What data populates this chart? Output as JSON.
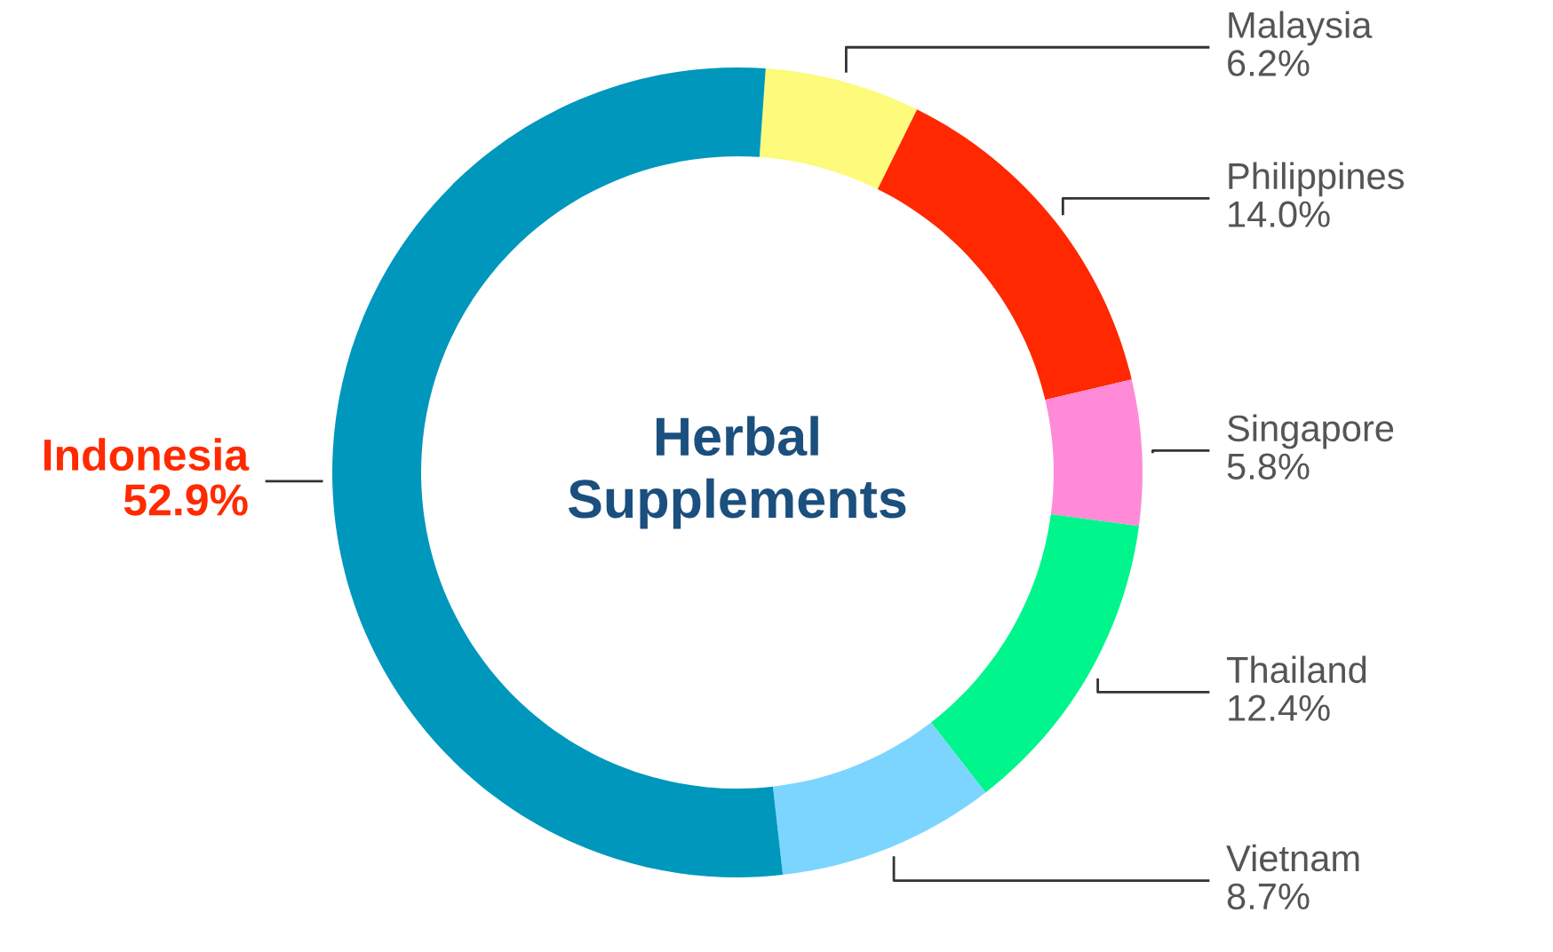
{
  "chart_data": {
    "type": "donut",
    "title": "Herbal\nSupplements",
    "categories": [
      "Malaysia",
      "Philippines",
      "Singapore",
      "Thailand",
      "Vietnam",
      "Indonesia"
    ],
    "values": [
      6.2,
      14.0,
      5.8,
      12.4,
      8.7,
      52.9
    ],
    "value_labels": [
      "6.2%",
      "14.0%",
      "5.8%",
      "12.4%",
      "8.7%",
      "52.9%"
    ],
    "colors": [
      "#fdfa7c",
      "#ff2800",
      "#ff8ad8",
      "#00f58c",
      "#7cd5ff",
      "#0097bd"
    ],
    "legend": false
  }
}
